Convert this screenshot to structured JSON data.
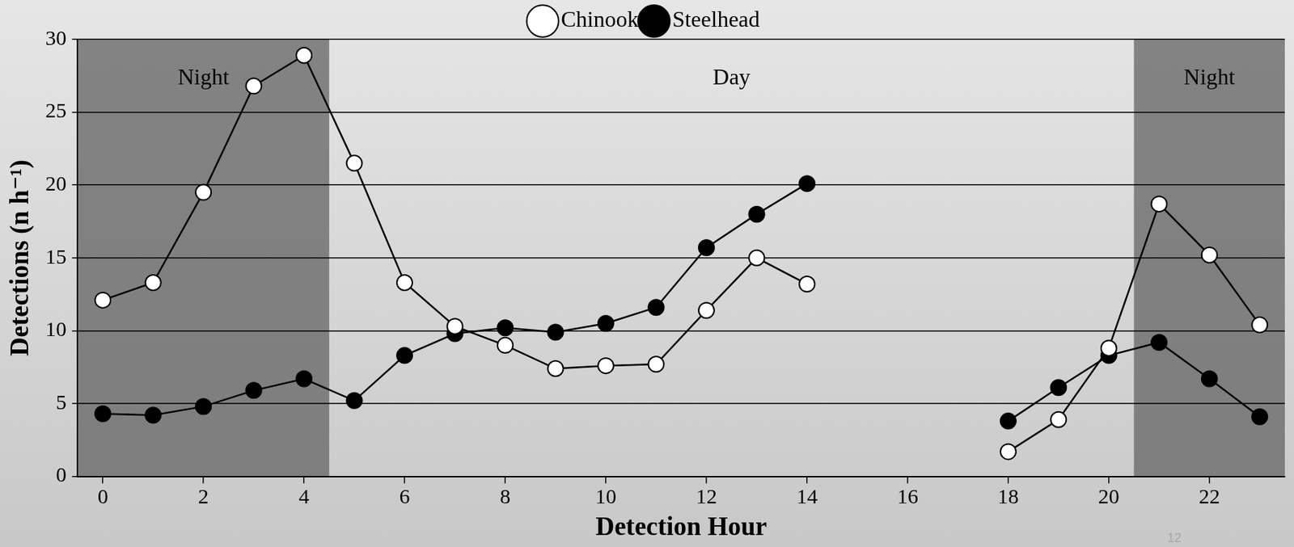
{
  "chart_data": {
    "type": "line",
    "x_label": "Detection Hour",
    "y_label": "Detections (n h⁻¹)",
    "x": [
      0,
      1,
      2,
      3,
      4,
      5,
      6,
      7,
      8,
      9,
      10,
      11,
      12,
      13,
      14,
      15,
      16,
      17,
      18,
      19,
      20,
      21,
      22,
      23
    ],
    "series": [
      {
        "name": "Chinook",
        "color": "#ffffff",
        "marker": "circle",
        "line_style": "solid",
        "values": [
          12.1,
          13.3,
          19.5,
          26.8,
          28.9,
          21.5,
          13.3,
          10.3,
          9.0,
          7.4,
          7.6,
          7.7,
          11.4,
          15.0,
          13.2,
          null,
          null,
          null,
          1.7,
          3.9,
          8.8,
          18.7,
          15.2,
          10.4
        ]
      },
      {
        "name": "Steelhead",
        "color": "#000000",
        "marker": "circle",
        "line_style": "solid",
        "values": [
          4.3,
          4.2,
          4.8,
          5.9,
          6.7,
          5.2,
          8.3,
          9.8,
          10.2,
          9.9,
          10.5,
          11.6,
          15.7,
          18.0,
          20.1,
          null,
          null,
          null,
          3.8,
          6.1,
          8.3,
          9.2,
          6.7,
          4.1
        ]
      }
    ],
    "regions": [
      {
        "label": "Night",
        "x": [
          -0.5,
          4.5
        ],
        "color": "#6a6a6a"
      },
      {
        "label": "Day",
        "x": [
          4.5,
          20.5
        ]
      },
      {
        "label": "Night",
        "x": [
          20.5,
          23.5
        ],
        "color": "#6a6a6a"
      }
    ],
    "annotations": [
      {
        "text": "12"
      }
    ],
    "xlim": [
      -0.5,
      23.5
    ],
    "xticks": [
      0,
      2,
      4,
      6,
      8,
      10,
      12,
      14,
      16,
      18,
      20,
      22
    ],
    "ylim": [
      0,
      30
    ],
    "yticks": [
      0,
      5,
      10,
      15,
      20,
      25,
      30
    ],
    "grid": true,
    "legend": "top"
  }
}
